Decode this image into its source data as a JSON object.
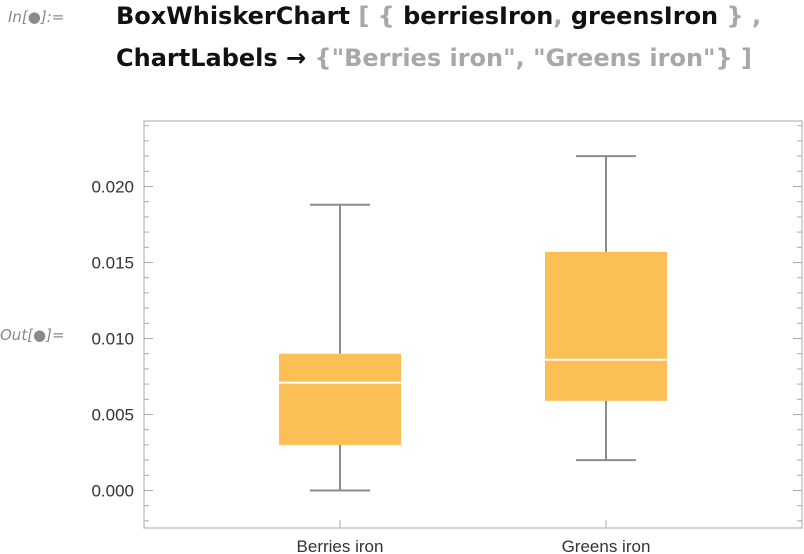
{
  "input": {
    "in_label": "In[●]:=",
    "code_line1": {
      "fn": "BoxWhiskerChart",
      "open": "[ {",
      "arg1": "berriesIron",
      "comma": ",",
      "arg2": "greensIron",
      "close": "} ,"
    },
    "code_line2": {
      "option": "ChartLabels",
      "arrow": "→",
      "value": "{\"Berries iron\", \"Greens iron\"} ]"
    }
  },
  "output": {
    "out_label": "Out[●]="
  },
  "colors": {
    "box_fill": "#FBBF55",
    "median": "#ffffff",
    "whisker": "#8c8c8c",
    "frame": "#aaaaaa"
  },
  "chart_data": {
    "type": "boxwhisker",
    "categories": [
      "Berries iron",
      "Greens iron"
    ],
    "boxes": [
      {
        "min": 0.0,
        "q1": 0.003,
        "median": 0.0071,
        "q3": 0.009,
        "max": 0.0188
      },
      {
        "min": 0.002,
        "q1": 0.0059,
        "median": 0.0086,
        "q3": 0.0157,
        "max": 0.022
      }
    ],
    "yticks": [
      "0.000",
      "0.005",
      "0.010",
      "0.015",
      "0.020"
    ],
    "ylim": [
      -0.0025,
      0.0245
    ],
    "grid": false,
    "frame": true
  }
}
